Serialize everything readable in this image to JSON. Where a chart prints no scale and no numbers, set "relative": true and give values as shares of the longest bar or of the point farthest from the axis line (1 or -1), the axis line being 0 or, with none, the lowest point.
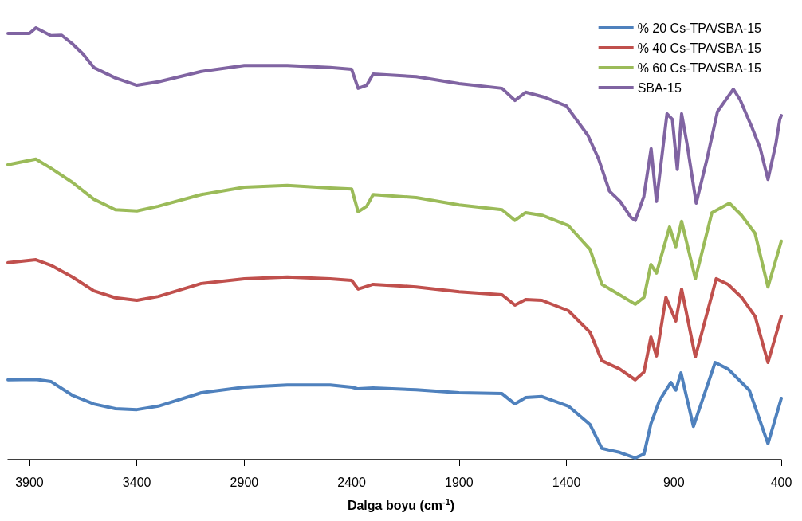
{
  "chart_data": {
    "type": "line",
    "relative": true,
    "xlabel": "Dalga boyu (cm$^{-1}$)",
    "xlim": [
      4000,
      400
    ],
    "xticks": [
      3900,
      3400,
      2900,
      2400,
      1900,
      1400,
      900,
      400
    ],
    "legend": "top right",
    "marker": "none",
    "line_style": "solid",
    "series": [
      {
        "name": "% 20 Cs-TPA/SBA-15",
        "color": "#4f81bd",
        "x": [
          4000,
          3870,
          3800,
          3700,
          3600,
          3500,
          3400,
          3300,
          3100,
          2900,
          2700,
          2500,
          2400,
          2370,
          2300,
          2100,
          1900,
          1700,
          1640,
          1590,
          1514,
          1391,
          1290,
          1235,
          1153,
          1080,
          1039,
          1007,
          967,
          914,
          891,
          867,
          809,
          708,
          648,
          549,
          462,
          400
        ],
        "values": [
          0.185,
          0.186,
          0.181,
          0.149,
          0.129,
          0.118,
          0.116,
          0.124,
          0.155,
          0.168,
          0.173,
          0.173,
          0.168,
          0.164,
          0.166,
          0.162,
          0.155,
          0.153,
          0.129,
          0.144,
          0.146,
          0.124,
          0.081,
          0.026,
          0.017,
          0.004,
          0.013,
          0.083,
          0.137,
          0.179,
          0.161,
          0.201,
          0.077,
          0.225,
          0.21,
          0.161,
          0.037,
          0.142
        ]
      },
      {
        "name": "% 40 Cs-TPA/SBA-15",
        "color": "#c0504d",
        "x": [
          4000,
          3870,
          3800,
          3700,
          3600,
          3500,
          3400,
          3300,
          3100,
          2900,
          2700,
          2500,
          2400,
          2370,
          2300,
          2100,
          1900,
          1700,
          1640,
          1590,
          1514,
          1391,
          1290,
          1235,
          1153,
          1080,
          1039,
          1007,
          981,
          937,
          891,
          864,
          800,
          703,
          648,
          585,
          522,
          462,
          400
        ],
        "values": [
          0.456,
          0.463,
          0.45,
          0.423,
          0.391,
          0.375,
          0.369,
          0.378,
          0.408,
          0.419,
          0.423,
          0.419,
          0.415,
          0.395,
          0.406,
          0.4,
          0.389,
          0.382,
          0.358,
          0.371,
          0.369,
          0.345,
          0.295,
          0.229,
          0.21,
          0.185,
          0.203,
          0.284,
          0.24,
          0.376,
          0.321,
          0.395,
          0.238,
          0.419,
          0.406,
          0.376,
          0.332,
          0.225,
          0.332
        ]
      },
      {
        "name": "% 60 Cs-TPA/SBA-15",
        "color": "#9bbb59",
        "x": [
          4000,
          3870,
          3800,
          3700,
          3600,
          3500,
          3400,
          3300,
          3100,
          2900,
          2700,
          2500,
          2400,
          2370,
          2330,
          2300,
          2100,
          1900,
          1700,
          1640,
          1590,
          1514,
          1391,
          1290,
          1235,
          1153,
          1080,
          1039,
          1007,
          981,
          920,
          891,
          864,
          800,
          723,
          641,
          585,
          522,
          462,
          400
        ],
        "values": [
          0.683,
          0.696,
          0.675,
          0.642,
          0.603,
          0.579,
          0.576,
          0.587,
          0.614,
          0.631,
          0.635,
          0.629,
          0.627,
          0.574,
          0.587,
          0.614,
          0.607,
          0.59,
          0.579,
          0.554,
          0.572,
          0.566,
          0.542,
          0.487,
          0.406,
          0.382,
          0.36,
          0.376,
          0.452,
          0.432,
          0.539,
          0.493,
          0.552,
          0.419,
          0.572,
          0.594,
          0.566,
          0.524,
          0.4,
          0.506
        ]
      },
      {
        "name": "SBA-15",
        "color": "#8064a2",
        "x": [
          4000,
          3900,
          3870,
          3800,
          3750,
          3700,
          3650,
          3600,
          3500,
          3400,
          3300,
          3100,
          2900,
          2700,
          2500,
          2400,
          2370,
          2330,
          2300,
          2100,
          1900,
          1700,
          1640,
          1590,
          1500,
          1400,
          1300,
          1250,
          1200,
          1150,
          1100,
          1080,
          1040,
          1006,
          981,
          932,
          907,
          884,
          864,
          839,
          796,
          746,
          697,
          623,
          592,
          536,
          517,
          499,
          462,
          425,
          407,
          400
        ],
        "values": [
          0.987,
          0.987,
          1,
          0.982,
          0.983,
          0.963,
          0.939,
          0.908,
          0.884,
          0.867,
          0.875,
          0.899,
          0.913,
          0.913,
          0.908,
          0.904,
          0.86,
          0.867,
          0.893,
          0.887,
          0.871,
          0.86,
          0.832,
          0.851,
          0.839,
          0.819,
          0.751,
          0.696,
          0.622,
          0.598,
          0.561,
          0.554,
          0.609,
          0.72,
          0.598,
          0.801,
          0.788,
          0.672,
          0.801,
          0.732,
          0.594,
          0.696,
          0.806,
          0.858,
          0.834,
          0.769,
          0.745,
          0.723,
          0.649,
          0.732,
          0.788,
          0.797
        ]
      }
    ]
  }
}
